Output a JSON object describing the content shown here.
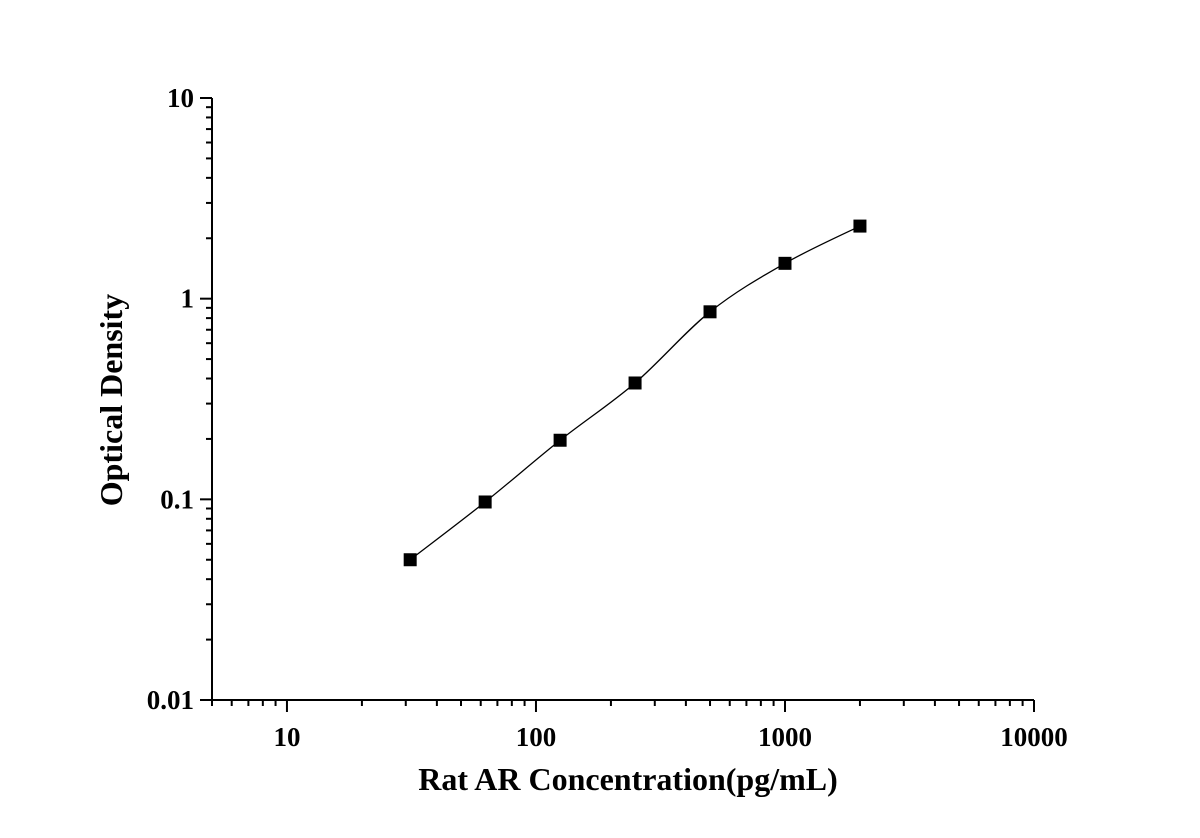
{
  "chart_data": {
    "type": "scatter",
    "xlabel": "Rat AR Concentration(pg/mL)",
    "ylabel": "Optical Density",
    "x_scale": "log",
    "y_scale": "log",
    "xlim": [
      5,
      10000
    ],
    "ylim": [
      0.01,
      10
    ],
    "x_ticks": [
      {
        "value": 10,
        "label": "10"
      },
      {
        "value": 100,
        "label": "100"
      },
      {
        "value": 1000,
        "label": "1000"
      },
      {
        "value": 10000,
        "label": "10000"
      }
    ],
    "y_ticks": [
      {
        "value": 0.01,
        "label": "0.01"
      },
      {
        "value": 0.1,
        "label": "0.1"
      },
      {
        "value": 1,
        "label": "1"
      },
      {
        "value": 10,
        "label": "10"
      }
    ],
    "grid": false,
    "marker": "square",
    "fit_line": true,
    "colors": {
      "marker": "#000000",
      "line": "#000000",
      "axis": "#000000"
    },
    "series": [
      {
        "x": [
          31.25,
          62.5,
          125,
          250,
          500,
          1000,
          2000
        ],
        "y": [
          0.05,
          0.097,
          0.197,
          0.38,
          0.86,
          1.5,
          2.3
        ]
      }
    ]
  }
}
